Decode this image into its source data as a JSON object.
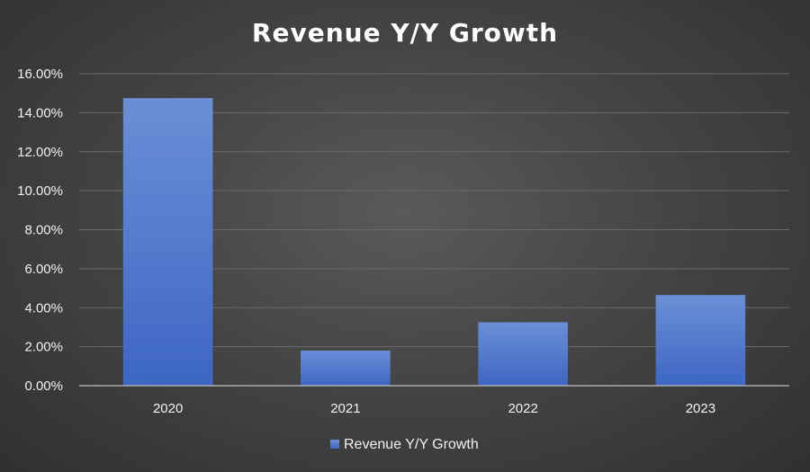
{
  "chart_data": {
    "type": "bar",
    "title": "Revenue Y/Y Growth",
    "categories": [
      "2020",
      "2021",
      "2022",
      "2023"
    ],
    "series": [
      {
        "name": "Revenue Y/Y Growth",
        "values": [
          14.75,
          1.8,
          3.25,
          4.65
        ]
      }
    ],
    "xlabel": "",
    "ylabel": "",
    "ylim": [
      0,
      16
    ],
    "yticks": [
      0,
      2,
      4,
      6,
      8,
      10,
      12,
      14,
      16
    ],
    "ytick_labels": [
      "0.00%",
      "2.00%",
      "4.00%",
      "6.00%",
      "8.00%",
      "10.00%",
      "12.00%",
      "14.00%",
      "16.00%"
    ],
    "grid": true,
    "legend": "bottom",
    "colors": {
      "bar_top": "#6b8fd6",
      "bar_bottom": "#3d66c4"
    }
  }
}
